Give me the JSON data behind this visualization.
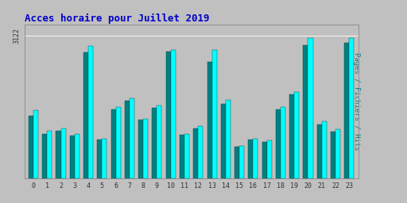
{
  "title": "Acces horaire pour Juillet 2019",
  "title_color": "#0000cc",
  "title_fontsize": 9,
  "ylabel": "Pages / Fichiers / Hits",
  "ylabel_color": "#008080",
  "ylabel_fontsize": 6.5,
  "ymax": 3122,
  "background_color": "#c0c0c0",
  "bar_color_cyan": "#00ffff",
  "bar_color_teal": "#008080",
  "bar_width": 0.35,
  "hours": [
    0,
    1,
    2,
    3,
    4,
    5,
    6,
    7,
    8,
    9,
    10,
    11,
    12,
    13,
    14,
    15,
    16,
    17,
    18,
    19,
    20,
    21,
    22,
    23
  ],
  "pages": [
    1500,
    1050,
    1100,
    980,
    2900,
    870,
    1560,
    1750,
    1300,
    1600,
    2820,
    980,
    1150,
    2820,
    1720,
    720,
    880,
    830,
    1560,
    1900,
    3080,
    1250,
    1080,
    3080
  ],
  "fichiers": [
    1380,
    980,
    1050,
    940,
    2760,
    860,
    1520,
    1700,
    1280,
    1540,
    2770,
    950,
    1090,
    2550,
    1640,
    690,
    855,
    800,
    1510,
    1840,
    2910,
    1180,
    1030,
    2970
  ]
}
